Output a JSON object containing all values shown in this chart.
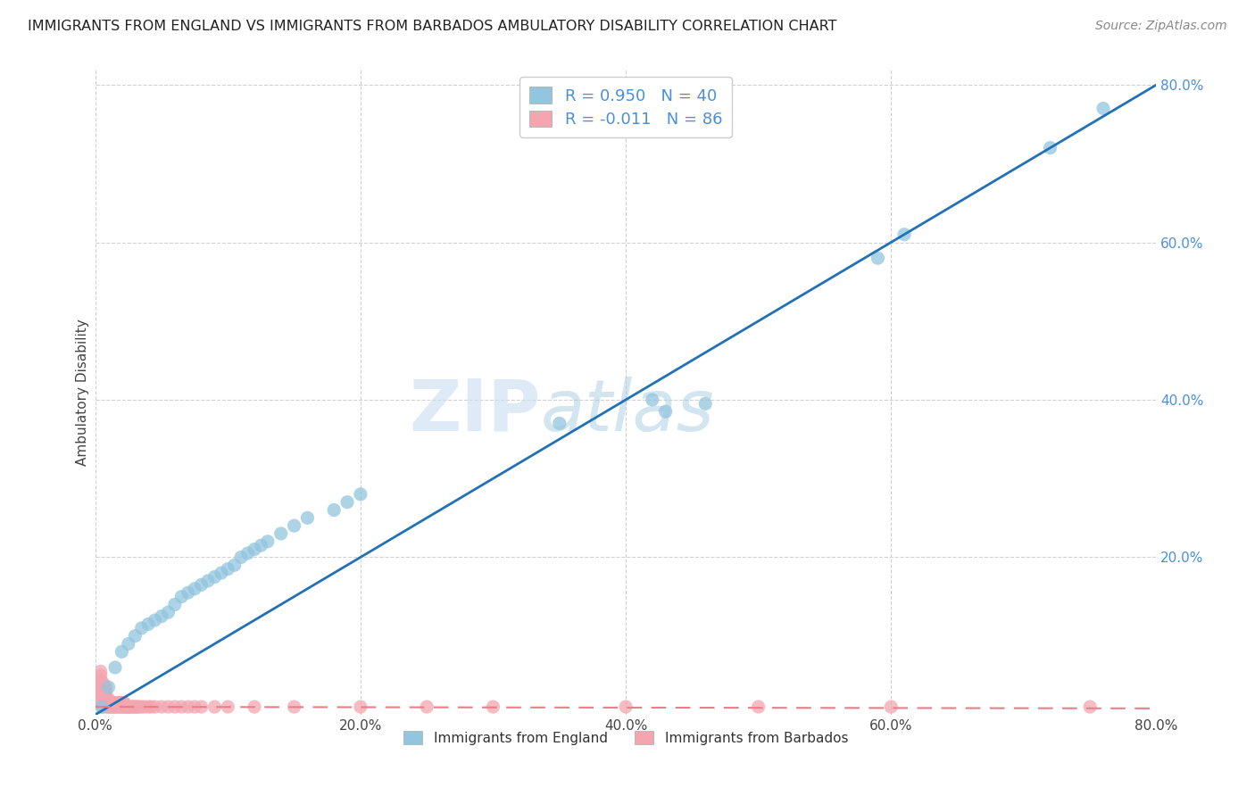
{
  "title": "IMMIGRANTS FROM ENGLAND VS IMMIGRANTS FROM BARBADOS AMBULATORY DISABILITY CORRELATION CHART",
  "source": "Source: ZipAtlas.com",
  "ylabel": "Ambulatory Disability",
  "xlim": [
    0.0,
    0.8
  ],
  "ylim": [
    0.0,
    0.82
  ],
  "x_tick_labels": [
    "0.0%",
    "20.0%",
    "40.0%",
    "60.0%",
    "80.0%"
  ],
  "x_tick_vals": [
    0.0,
    0.2,
    0.4,
    0.6,
    0.8
  ],
  "y_tick_labels": [
    "20.0%",
    "40.0%",
    "60.0%",
    "80.0%"
  ],
  "y_tick_vals": [
    0.2,
    0.4,
    0.6,
    0.8
  ],
  "england_R": 0.95,
  "england_N": 40,
  "barbados_R": -0.011,
  "barbados_N": 86,
  "england_color": "#92C5DE",
  "barbados_color": "#F4A6B0",
  "england_line_color": "#2171B5",
  "barbados_line_color": "#E87E8A",
  "watermark_zip": "ZIP",
  "watermark_atlas": "atlas",
  "background_color": "#ffffff",
  "england_x": [
    0.005,
    0.01,
    0.015,
    0.02,
    0.025,
    0.03,
    0.035,
    0.04,
    0.045,
    0.05,
    0.055,
    0.06,
    0.065,
    0.07,
    0.075,
    0.08,
    0.085,
    0.09,
    0.095,
    0.1,
    0.105,
    0.11,
    0.115,
    0.12,
    0.125,
    0.13,
    0.14,
    0.15,
    0.16,
    0.18,
    0.19,
    0.2,
    0.35,
    0.42,
    0.43,
    0.46,
    0.59,
    0.61,
    0.72,
    0.76
  ],
  "england_y": [
    0.01,
    0.035,
    0.06,
    0.08,
    0.09,
    0.1,
    0.11,
    0.115,
    0.12,
    0.125,
    0.13,
    0.14,
    0.15,
    0.155,
    0.16,
    0.165,
    0.17,
    0.175,
    0.18,
    0.185,
    0.19,
    0.2,
    0.205,
    0.21,
    0.215,
    0.22,
    0.23,
    0.24,
    0.25,
    0.26,
    0.27,
    0.28,
    0.37,
    0.4,
    0.385,
    0.395,
    0.58,
    0.61,
    0.72,
    0.77
  ],
  "barbados_x": [
    0.001,
    0.002,
    0.002,
    0.003,
    0.003,
    0.004,
    0.004,
    0.004,
    0.005,
    0.005,
    0.005,
    0.005,
    0.006,
    0.006,
    0.006,
    0.007,
    0.007,
    0.007,
    0.008,
    0.008,
    0.008,
    0.009,
    0.009,
    0.009,
    0.01,
    0.01,
    0.01,
    0.011,
    0.011,
    0.012,
    0.012,
    0.013,
    0.013,
    0.014,
    0.014,
    0.015,
    0.015,
    0.016,
    0.016,
    0.017,
    0.017,
    0.018,
    0.018,
    0.019,
    0.019,
    0.02,
    0.02,
    0.021,
    0.021,
    0.022,
    0.022,
    0.023,
    0.024,
    0.025,
    0.025,
    0.026,
    0.027,
    0.028,
    0.029,
    0.03,
    0.031,
    0.032,
    0.033,
    0.035,
    0.037,
    0.04,
    0.042,
    0.045,
    0.05,
    0.055,
    0.06,
    0.065,
    0.07,
    0.075,
    0.08,
    0.09,
    0.1,
    0.12,
    0.15,
    0.2,
    0.25,
    0.3,
    0.4,
    0.5,
    0.6,
    0.75
  ],
  "barbados_y": [
    0.02,
    0.025,
    0.03,
    0.035,
    0.04,
    0.045,
    0.05,
    0.055,
    0.01,
    0.015,
    0.02,
    0.025,
    0.03,
    0.035,
    0.04,
    0.01,
    0.015,
    0.02,
    0.025,
    0.03,
    0.035,
    0.01,
    0.015,
    0.02,
    0.01,
    0.015,
    0.02,
    0.01,
    0.015,
    0.01,
    0.015,
    0.01,
    0.015,
    0.01,
    0.015,
    0.01,
    0.015,
    0.01,
    0.015,
    0.01,
    0.015,
    0.01,
    0.015,
    0.01,
    0.015,
    0.01,
    0.015,
    0.01,
    0.015,
    0.01,
    0.015,
    0.01,
    0.01,
    0.01,
    0.01,
    0.01,
    0.01,
    0.01,
    0.01,
    0.01,
    0.01,
    0.01,
    0.01,
    0.01,
    0.01,
    0.01,
    0.01,
    0.01,
    0.01,
    0.01,
    0.01,
    0.01,
    0.01,
    0.01,
    0.01,
    0.01,
    0.01,
    0.01,
    0.01,
    0.01,
    0.01,
    0.01,
    0.01,
    0.01,
    0.01,
    0.01
  ]
}
